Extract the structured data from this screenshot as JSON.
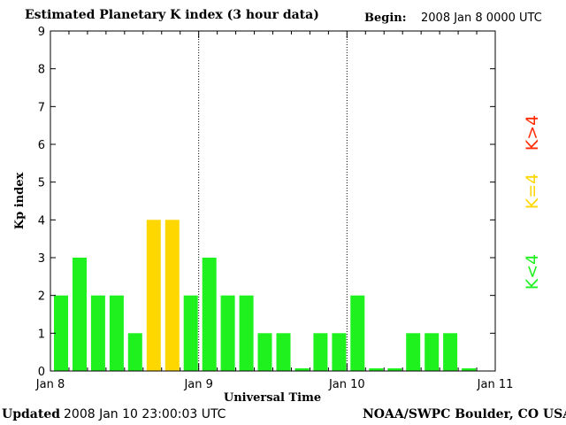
{
  "header": {
    "title": "Estimated Planetary K index (3 hour data)",
    "begin_label": "Begin:",
    "begin_value": "2008 Jan 8 0000 UTC"
  },
  "footer": {
    "updated_label": "Updated",
    "updated_value": "2008 Jan 10 23:00:03 UTC",
    "credit": "NOAA/SWPC Boulder, CO USA"
  },
  "legend": [
    {
      "label": "K<4",
      "color": "#1ef11e"
    },
    {
      "label": "K=4",
      "color": "#ffd700"
    },
    {
      "label": "K>4",
      "color": "#ff2a00"
    }
  ],
  "chart_data": {
    "type": "bar",
    "title": "Estimated Planetary K index (3 hour data)",
    "xlabel": "Universal Time",
    "ylabel": "Kp index",
    "ylim": [
      0,
      9
    ],
    "yticks": [
      0,
      1,
      2,
      3,
      4,
      5,
      6,
      7,
      8,
      9
    ],
    "xlim": [
      0,
      72
    ],
    "x_unit": "hours since 2008 Jan 8 0000 UTC",
    "x_tick_labels": [
      "Jan 8",
      "Jan 9",
      "Jan 10",
      "Jan 11"
    ],
    "day_separators": [
      24,
      48
    ],
    "bar_hours": 3,
    "values": [
      2,
      3,
      2,
      2,
      1,
      4,
      4,
      2,
      3,
      2,
      2,
      1,
      1,
      0,
      1,
      1,
      2,
      0,
      0,
      1,
      1,
      1,
      0,
      null
    ],
    "colors": {
      "below_4": "#1ef11e",
      "equal_4": "#ffd700",
      "above_4": "#ff2a00"
    }
  }
}
